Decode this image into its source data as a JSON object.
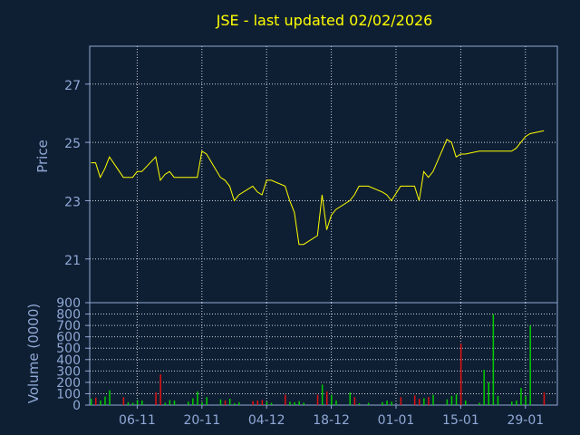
{
  "chart_data": [
    {
      "type": "line",
      "title": "JSE - last updated 02/02/2026",
      "ylabel": "Price",
      "xlabel": "",
      "ylim": [
        19.5,
        28.3
      ],
      "yticks": [
        21,
        23,
        25,
        27
      ],
      "xticks": [
        "06-11",
        "20-11",
        "04-12",
        "18-12",
        "01-01",
        "15-01",
        "29-01"
      ],
      "grid": true,
      "line_color": "#ffff00",
      "x": [
        "2025-10-27",
        "2025-10-28",
        "2025-10-29",
        "2025-10-30",
        "2025-10-31",
        "2025-11-03",
        "2025-11-04",
        "2025-11-05",
        "2025-11-06",
        "2025-11-07",
        "2025-11-10",
        "2025-11-11",
        "2025-11-12",
        "2025-11-13",
        "2025-11-14",
        "2025-11-17",
        "2025-11-18",
        "2025-11-19",
        "2025-11-20",
        "2025-11-21",
        "2025-11-24",
        "2025-11-25",
        "2025-11-26",
        "2025-11-27",
        "2025-11-28",
        "2025-12-01",
        "2025-12-02",
        "2025-12-03",
        "2025-12-04",
        "2025-12-05",
        "2025-12-08",
        "2025-12-09",
        "2025-12-10",
        "2025-12-11",
        "2025-12-12",
        "2025-12-15",
        "2025-12-16",
        "2025-12-17",
        "2025-12-18",
        "2025-12-19",
        "2025-12-22",
        "2025-12-23",
        "2025-12-24",
        "2025-12-26",
        "2025-12-29",
        "2025-12-30",
        "2025-12-31",
        "2026-01-02",
        "2026-01-05",
        "2026-01-06",
        "2026-01-07",
        "2026-01-08",
        "2026-01-09",
        "2026-01-12",
        "2026-01-13",
        "2026-01-14",
        "2026-01-15",
        "2026-01-16",
        "2026-01-19",
        "2026-01-20",
        "2026-01-21",
        "2026-01-22",
        "2026-01-23",
        "2026-01-26",
        "2026-01-27",
        "2026-01-28",
        "2026-01-29",
        "2026-01-30",
        "2026-02-02"
      ],
      "values": [
        24.3,
        24.3,
        23.8,
        24.1,
        24.5,
        23.8,
        23.8,
        23.8,
        24.0,
        24.0,
        24.5,
        23.7,
        23.9,
        24.0,
        23.8,
        23.8,
        23.8,
        23.8,
        24.7,
        24.6,
        23.8,
        23.7,
        23.5,
        23.0,
        23.2,
        23.5,
        23.3,
        23.2,
        23.7,
        23.7,
        23.5,
        23.0,
        22.6,
        21.5,
        21.5,
        21.8,
        23.2,
        22.0,
        22.5,
        22.7,
        23.0,
        23.2,
        23.5,
        23.5,
        23.3,
        23.2,
        23.0,
        23.5,
        23.5,
        23.0,
        24.0,
        23.8,
        24.0,
        25.1,
        25.0,
        24.5,
        24.6,
        24.6,
        24.7,
        24.7,
        24.7,
        24.7,
        24.7,
        24.7,
        24.8,
        25.0,
        25.2,
        25.3,
        25.4
      ]
    },
    {
      "type": "bar",
      "ylabel": "Volume (0000)",
      "ylim": [
        0,
        900
      ],
      "yticks": [
        0,
        100,
        200,
        300,
        400,
        500,
        600,
        700,
        800,
        900
      ],
      "up_color": "#00cc00",
      "down_color": "#e01010",
      "bars": [
        {
          "date": "2025-10-27",
          "value": 55,
          "dir": "up"
        },
        {
          "date": "2025-10-28",
          "value": 65,
          "dir": "down"
        },
        {
          "date": "2025-10-29",
          "value": 40,
          "dir": "up"
        },
        {
          "date": "2025-10-30",
          "value": 75,
          "dir": "up"
        },
        {
          "date": "2025-10-31",
          "value": 130,
          "dir": "up"
        },
        {
          "date": "2025-11-03",
          "value": 70,
          "dir": "down"
        },
        {
          "date": "2025-11-04",
          "value": 25,
          "dir": "up"
        },
        {
          "date": "2025-11-05",
          "value": 20,
          "dir": "up"
        },
        {
          "date": "2025-11-06",
          "value": 45,
          "dir": "up"
        },
        {
          "date": "2025-11-07",
          "value": 40,
          "dir": "up"
        },
        {
          "date": "2025-11-10",
          "value": 110,
          "dir": "down"
        },
        {
          "date": "2025-11-11",
          "value": 270,
          "dir": "down"
        },
        {
          "date": "2025-11-12",
          "value": 20,
          "dir": "up"
        },
        {
          "date": "2025-11-13",
          "value": 45,
          "dir": "up"
        },
        {
          "date": "2025-11-14",
          "value": 40,
          "dir": "up"
        },
        {
          "date": "2025-11-17",
          "value": 30,
          "dir": "up"
        },
        {
          "date": "2025-11-18",
          "value": 60,
          "dir": "up"
        },
        {
          "date": "2025-11-19",
          "value": 120,
          "dir": "up"
        },
        {
          "date": "2025-11-20",
          "value": 25,
          "dir": "up"
        },
        {
          "date": "2025-11-21",
          "value": 70,
          "dir": "up"
        },
        {
          "date": "2025-11-24",
          "value": 50,
          "dir": "up"
        },
        {
          "date": "2025-11-25",
          "value": 40,
          "dir": "down"
        },
        {
          "date": "2025-11-26",
          "value": 55,
          "dir": "up"
        },
        {
          "date": "2025-11-27",
          "value": 15,
          "dir": "up"
        },
        {
          "date": "2025-11-28",
          "value": 25,
          "dir": "up"
        },
        {
          "date": "2025-12-01",
          "value": 35,
          "dir": "down"
        },
        {
          "date": "2025-12-02",
          "value": 40,
          "dir": "down"
        },
        {
          "date": "2025-12-03",
          "value": 45,
          "dir": "down"
        },
        {
          "date": "2025-12-04",
          "value": 30,
          "dir": "up"
        },
        {
          "date": "2025-12-05",
          "value": 20,
          "dir": "up"
        },
        {
          "date": "2025-12-08",
          "value": 90,
          "dir": "down"
        },
        {
          "date": "2025-12-09",
          "value": 30,
          "dir": "up"
        },
        {
          "date": "2025-12-10",
          "value": 25,
          "dir": "up"
        },
        {
          "date": "2025-12-11",
          "value": 35,
          "dir": "up"
        },
        {
          "date": "2025-12-12",
          "value": 20,
          "dir": "up"
        },
        {
          "date": "2025-12-15",
          "value": 90,
          "dir": "down"
        },
        {
          "date": "2025-12-16",
          "value": 180,
          "dir": "up"
        },
        {
          "date": "2025-12-17",
          "value": 120,
          "dir": "down"
        },
        {
          "date": "2025-12-18",
          "value": 90,
          "dir": "up"
        },
        {
          "date": "2025-12-19",
          "value": 40,
          "dir": "up"
        },
        {
          "date": "2025-12-22",
          "value": 110,
          "dir": "up"
        },
        {
          "date": "2025-12-23",
          "value": 70,
          "dir": "down"
        },
        {
          "date": "2025-12-24",
          "value": 15,
          "dir": "up"
        },
        {
          "date": "2025-12-26",
          "value": 20,
          "dir": "up"
        },
        {
          "date": "2025-12-29",
          "value": 25,
          "dir": "up"
        },
        {
          "date": "2025-12-30",
          "value": 40,
          "dir": "up"
        },
        {
          "date": "2025-12-31",
          "value": 30,
          "dir": "up"
        },
        {
          "date": "2026-01-02",
          "value": 70,
          "dir": "down"
        },
        {
          "date": "2026-01-05",
          "value": 85,
          "dir": "down"
        },
        {
          "date": "2026-01-06",
          "value": 55,
          "dir": "down"
        },
        {
          "date": "2026-01-07",
          "value": 60,
          "dir": "up"
        },
        {
          "date": "2026-01-08",
          "value": 70,
          "dir": "down"
        },
        {
          "date": "2026-01-09",
          "value": 90,
          "dir": "up"
        },
        {
          "date": "2026-01-12",
          "value": 50,
          "dir": "up"
        },
        {
          "date": "2026-01-13",
          "value": 80,
          "dir": "up"
        },
        {
          "date": "2026-01-14",
          "value": 95,
          "dir": "up"
        },
        {
          "date": "2026-01-15",
          "value": 540,
          "dir": "down"
        },
        {
          "date": "2026-01-16",
          "value": 40,
          "dir": "up"
        },
        {
          "date": "2026-01-19",
          "value": 20,
          "dir": "up"
        },
        {
          "date": "2026-01-20",
          "value": 310,
          "dir": "up"
        },
        {
          "date": "2026-01-21",
          "value": 200,
          "dir": "up"
        },
        {
          "date": "2026-01-22",
          "value": 800,
          "dir": "up"
        },
        {
          "date": "2026-01-23",
          "value": 80,
          "dir": "up"
        },
        {
          "date": "2026-01-26",
          "value": 30,
          "dir": "up"
        },
        {
          "date": "2026-01-27",
          "value": 40,
          "dir": "up"
        },
        {
          "date": "2026-01-28",
          "value": 150,
          "dir": "up"
        },
        {
          "date": "2026-01-29",
          "value": 80,
          "dir": "up"
        },
        {
          "date": "2026-01-30",
          "value": 700,
          "dir": "up"
        },
        {
          "date": "2026-02-02",
          "value": 110,
          "dir": "down"
        }
      ]
    }
  ]
}
